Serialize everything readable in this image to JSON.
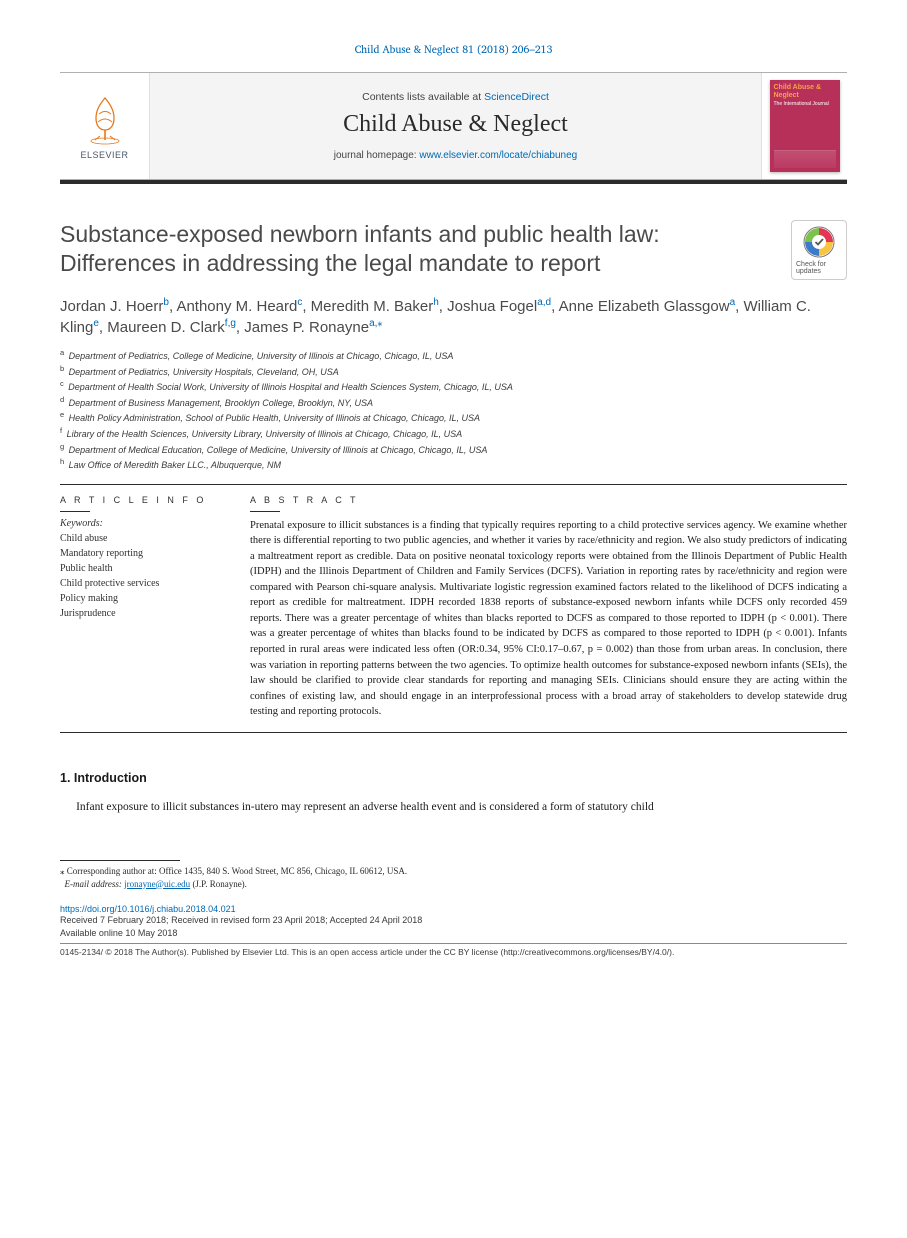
{
  "citation": "Child Abuse & Neglect 81 (2018) 206–213",
  "header": {
    "contents_prefix": "Contents lists available at ",
    "contents_link": "ScienceDirect",
    "journal": "Child Abuse & Neglect",
    "homepage_prefix": "journal homepage: ",
    "homepage_url": "www.elsevier.com/locate/chiabuneg",
    "publisher_label": "ELSEVIER",
    "cover_title": "Child Abuse & Neglect",
    "cover_sub": "The International Journal"
  },
  "check_updates_label": "Check for updates",
  "title": "Substance-exposed newborn infants and public health law: Differences in addressing the legal mandate to report",
  "authors_html": "Jordan J. Hoerr<sup>b</sup>, Anthony M. Heard<sup>c</sup>, Meredith M. Baker<sup>h</sup>, Joshua Fogel<sup>a,d</sup>, Anne Elizabeth Glassgow<sup>a</sup>, William C. Kling<sup>e</sup>, Maureen D. Clark<sup>f,g</sup>, James P. Ronayne<sup>a,</sup><sup>⁎</sup>",
  "affiliations": [
    {
      "sup": "a",
      "text": "Department of Pediatrics, College of Medicine, University of Illinois at Chicago, Chicago, IL, USA"
    },
    {
      "sup": "b",
      "text": "Department of Pediatrics, University Hospitals, Cleveland, OH, USA"
    },
    {
      "sup": "c",
      "text": "Department of Health Social Work, University of Illinois Hospital and Health Sciences System, Chicago, IL, USA"
    },
    {
      "sup": "d",
      "text": "Department of Business Management, Brooklyn College, Brooklyn, NY, USA"
    },
    {
      "sup": "e",
      "text": "Health Policy Administration, School of Public Health, University of Illinois at Chicago, Chicago, IL, USA"
    },
    {
      "sup": "f",
      "text": "Library of the Health Sciences, University Library, University of Illinois at Chicago, Chicago, IL, USA"
    },
    {
      "sup": "g",
      "text": "Department of Medical Education, College of Medicine, University of Illinois at Chicago, Chicago, IL, USA"
    },
    {
      "sup": "h",
      "text": "Law Office of Meredith Baker LLC., Albuquerque, NM"
    }
  ],
  "info_heading": "A R T I C L E  I N F O",
  "abstract_heading": "A B S T R A C T",
  "keywords_label": "Keywords:",
  "keywords": [
    "Child abuse",
    "Mandatory reporting",
    "Public health",
    "Child protective services",
    "Policy making",
    "Jurisprudence"
  ],
  "abstract": "Prenatal exposure to illicit substances is a finding that typically requires reporting to a child protective services agency. We examine whether there is differential reporting to two public agencies, and whether it varies by race/ethnicity and region. We also study predictors of indicating a maltreatment report as credible. Data on positive neonatal toxicology reports were obtained from the Illinois Department of Public Health (IDPH) and the Illinois Department of Children and Family Services (DCFS). Variation in reporting rates by race/ethnicity and region were compared with Pearson chi-square analysis. Multivariate logistic regression examined factors related to the likelihood of DCFS indicating a report as credible for maltreatment. IDPH recorded 1838 reports of substance-exposed newborn infants while DCFS only recorded 459 reports. There was a greater percentage of whites than blacks reported to DCFS as compared to those reported to IDPH (p < 0.001). There was a greater percentage of whites than blacks found to be indicated by DCFS as compared to those reported to IDPH (p < 0.001). Infants reported in rural areas were indicated less often (OR:0.34, 95% CI:0.17–0.67, p = 0.002) than those from urban areas. In conclusion, there was variation in reporting patterns between the two agencies. To optimize health outcomes for substance-exposed newborn infants (SEIs), the law should be clarified to provide clear standards for reporting and managing SEIs. Clinicians should ensure they are acting within the confines of existing law, and should engage in an interprofessional process with a broad array of stakeholders to develop statewide drug testing and reporting protocols.",
  "section1_heading": "1. Introduction",
  "section1_body": "Infant exposure to illicit substances in-utero may represent an adverse health event and is considered a form of statutory child",
  "footnotes": {
    "corresponding": "⁎ Corresponding author at: Office 1435, 840 S. Wood Street, MC 856, Chicago, IL 60612, USA.",
    "email_label": "E-mail address:",
    "email": "jronayne@uic.edu",
    "email_name": "(J.P. Ronayne)."
  },
  "doi": "https://doi.org/10.1016/j.chiabu.2018.04.021",
  "history": {
    "received": "Received 7 February 2018; Received in revised form 23 April 2018; Accepted 24 April 2018",
    "available": "Available online 10 May 2018"
  },
  "copyright": "0145-2134/ © 2018 The Author(s). Published by Elsevier Ltd. This is an open access article under the CC BY license (http://creativecommons.org/licenses/BY/4.0/).",
  "colors": {
    "link": "#0068b3",
    "rule_dark": "#2b2b2b",
    "cover_bg": "#b7305a",
    "cover_title": "#f7a24a",
    "header_bg": "#f4f4f4"
  }
}
